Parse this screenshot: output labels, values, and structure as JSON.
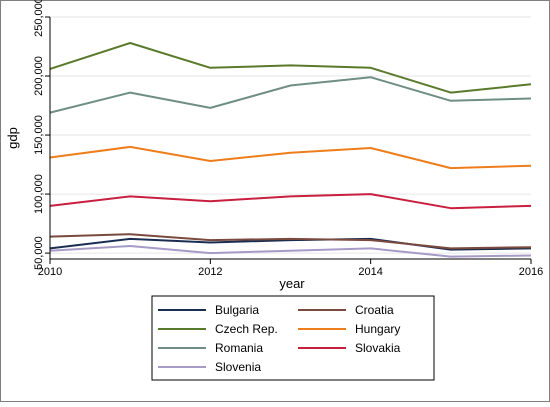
{
  "chart_data": {
    "type": "line",
    "xlabel": "year",
    "ylabel": "gdp",
    "x": [
      2010,
      2011,
      2012,
      2013,
      2014,
      2015,
      2016
    ],
    "xticks": [
      2010,
      2012,
      2014,
      2016
    ],
    "xtick_labels": [
      "2010",
      "2012",
      "2014",
      "2016"
    ],
    "xlim": [
      2010,
      2016
    ],
    "yticks": [
      50000,
      100000,
      150000,
      200000,
      250000
    ],
    "ytick_labels": [
      "50,000",
      "100,000",
      "150,000",
      "200,000",
      "250,000"
    ],
    "ylim": [
      45000,
      250000
    ],
    "grid": true,
    "legend_position": "bottom",
    "series": [
      {
        "name": "Bulgaria",
        "color": "#1a2e52",
        "values": [
          54000,
          62000,
          59000,
          61000,
          62000,
          53000,
          54000
        ]
      },
      {
        "name": "Croatia",
        "color": "#7a4a3f",
        "values": [
          64000,
          66000,
          61000,
          62000,
          61000,
          54000,
          55000
        ]
      },
      {
        "name": "Czech Rep.",
        "color": "#5a7a2b",
        "values": [
          206000,
          228000,
          207000,
          209000,
          207000,
          186000,
          193000
        ]
      },
      {
        "name": "Hungary",
        "color": "#ee7d1b",
        "values": [
          131000,
          140000,
          128000,
          135000,
          139000,
          122000,
          124000
        ]
      },
      {
        "name": "Romania",
        "color": "#6f8e85",
        "values": [
          169000,
          186000,
          173000,
          192000,
          199000,
          179000,
          181000
        ]
      },
      {
        "name": "Slovakia",
        "color": "#c81f3f",
        "values": [
          90000,
          98000,
          94000,
          98000,
          100000,
          88000,
          90000
        ]
      },
      {
        "name": "Slovenia",
        "color": "#a69ac7",
        "values": [
          52000,
          56000,
          50000,
          52000,
          54000,
          47000,
          48000
        ]
      }
    ]
  }
}
